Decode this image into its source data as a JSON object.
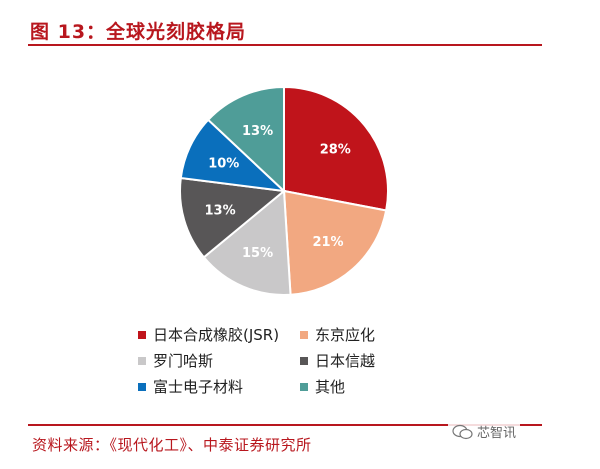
{
  "header": {
    "title": "图 13：全球光刻胶格局"
  },
  "chart_data": {
    "type": "pie",
    "title": "图 13：全球光刻胶格局",
    "slices": [
      {
        "label": "日本合成橡胶(JSR)",
        "value": 28,
        "display": "28%",
        "color": "#c0141b"
      },
      {
        "label": "东京应化",
        "value": 21,
        "display": "21%",
        "color": "#f2a881"
      },
      {
        "label": "罗门哈斯",
        "value": 15,
        "display": "15%",
        "color": "#c9c8c9"
      },
      {
        "label": "日本信越",
        "value": 13,
        "display": "13%",
        "color": "#585657"
      },
      {
        "label": "富士电子材料",
        "value": 10,
        "display": "10%",
        "color": "#0a6fbc"
      },
      {
        "label": "其他",
        "value": 13,
        "display": "13%",
        "color": "#4f9d98"
      }
    ],
    "legend_position": "bottom"
  },
  "footer": {
    "source": "资料来源：《现代化工》、中泰证券研究所",
    "watermark": "芯智讯"
  }
}
